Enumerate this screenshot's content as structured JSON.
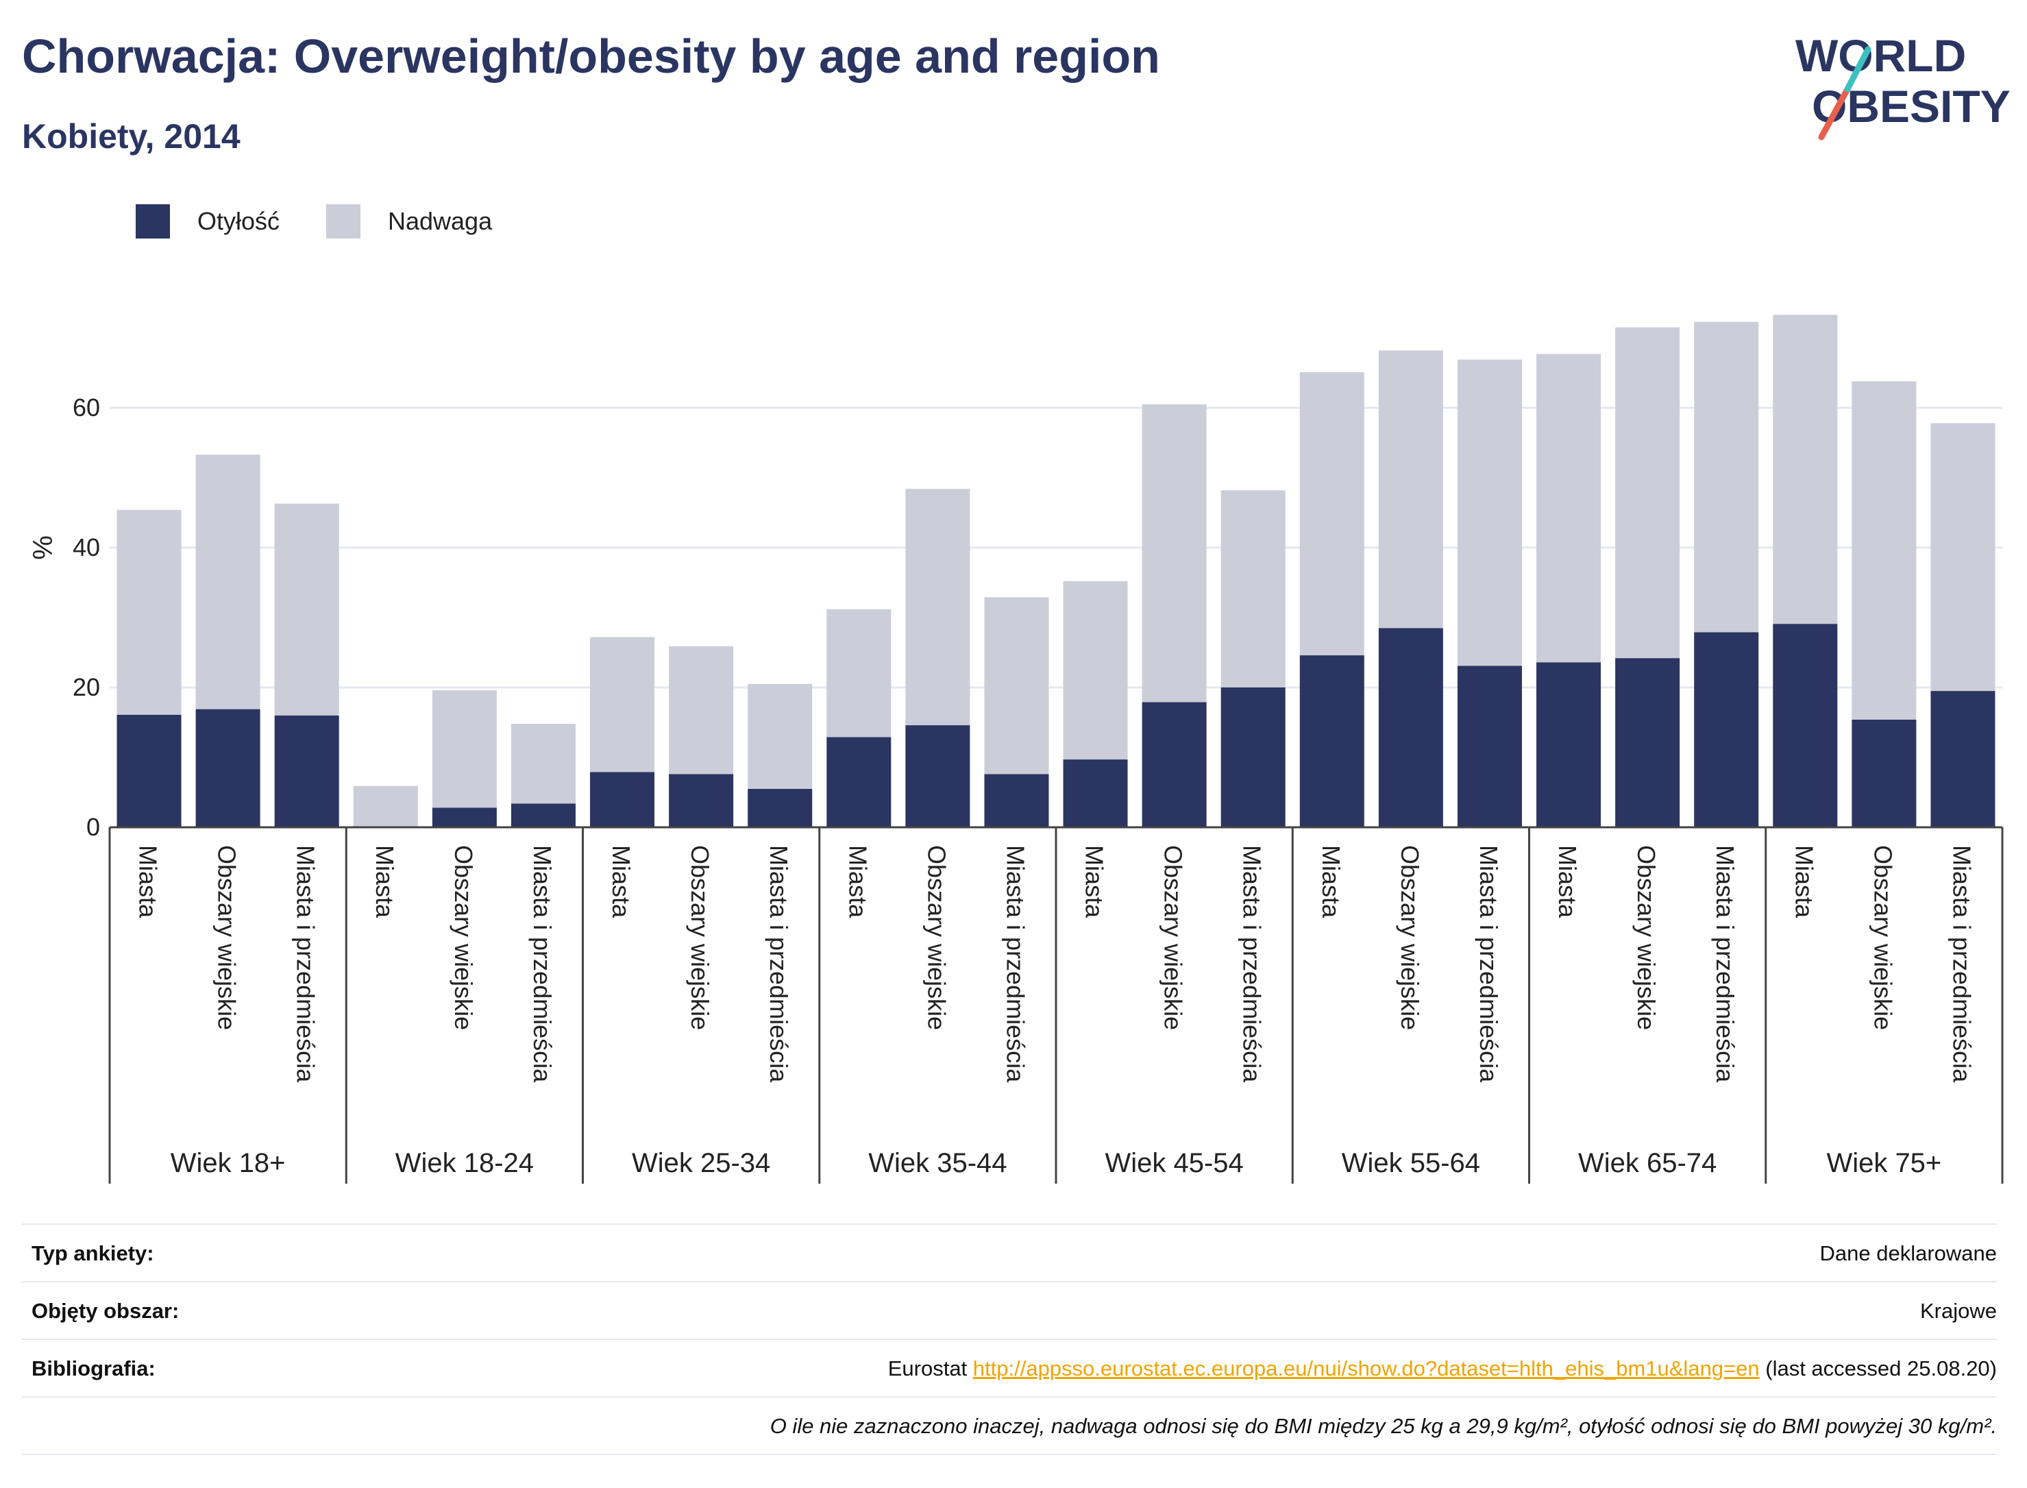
{
  "header": {
    "title": "Chorwacja: Overweight/obesity by age and region",
    "subtitle": "Kobiety, 2014"
  },
  "logo": {
    "line1": "WORLD",
    "line2": "OBESITY"
  },
  "colors": {
    "obesity": "#2a3561",
    "overweight": "#cbcdd9",
    "text": "#2a3561",
    "link": "#f0a400"
  },
  "chart_data": {
    "type": "bar",
    "stacked": true,
    "ylabel": "%",
    "ylim": [
      0,
      75
    ],
    "yticks": [
      0,
      20,
      40,
      60
    ],
    "grid": true,
    "legend_position": "top-left",
    "legend": [
      "Otyłość",
      "Nadwaga"
    ],
    "groups": [
      "Wiek 18+",
      "Wiek 18-24",
      "Wiek 25-34",
      "Wiek 35-44",
      "Wiek 45-54",
      "Wiek 55-64",
      "Wiek 65-74",
      "Wiek 75+"
    ],
    "regions": [
      "Miasta",
      "Obszary wiejskie",
      "Miasta i przedmieścia"
    ],
    "series": [
      {
        "name": "Otyłość",
        "values": [
          16.1,
          16.9,
          16.0,
          0,
          2.8,
          3.4,
          7.9,
          7.6,
          5.5,
          12.9,
          14.6,
          7.6,
          9.7,
          17.9,
          20.0,
          24.6,
          28.5,
          23.1,
          23.6,
          24.2,
          27.9,
          29.1,
          15.4,
          19.5
        ]
      },
      {
        "name": "Nadwaga",
        "values": [
          29.3,
          36.4,
          30.3,
          5.9,
          16.8,
          11.4,
          19.3,
          18.3,
          15.0,
          18.3,
          33.8,
          25.3,
          25.5,
          42.6,
          28.2,
          40.5,
          39.7,
          43.8,
          44.1,
          47.3,
          44.4,
          44.2,
          48.4,
          38.3
        ]
      }
    ]
  },
  "footer": {
    "rows": [
      {
        "key": "Typ ankiety:",
        "value": "Dane deklarowane"
      },
      {
        "key": "Objęty obszar:",
        "value": "Krajowe"
      }
    ],
    "bibliography": {
      "key": "Bibliografia:",
      "prefix": "Eurostat ",
      "link": "http://appsso.eurostat.ec.europa.eu/nui/show.do?dataset=hlth_ehis_bm1u&lang=en",
      "suffix": " (last accessed 25.08.20)"
    },
    "note": "O ile nie zaznaczono inaczej, nadwaga odnosi się do BMI między 25 kg a 29,9 kg/m², otyłość odnosi się do BMI powyżej 30 kg/m²."
  }
}
